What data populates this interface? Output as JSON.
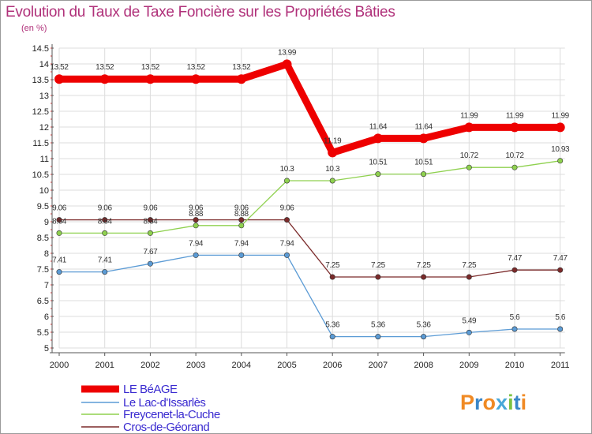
{
  "chart_data": {
    "type": "line",
    "title": "Evolution du Taux de Taxe Foncière sur les Propriétés Bâties",
    "subtitle": "(en %)",
    "x": [
      "2000",
      "2001",
      "2002",
      "2003",
      "2004",
      "2005",
      "2006",
      "2007",
      "2008",
      "2009",
      "2010",
      "2011"
    ],
    "ylim": [
      5,
      14.5
    ],
    "yticks": [
      "5",
      "5.5",
      "6",
      "6.5",
      "7",
      "7.5",
      "8",
      "8.5",
      "9",
      "9.5",
      "10",
      "10.5",
      "11",
      "11.5",
      "12",
      "12.5",
      "13",
      "13.5",
      "14",
      "14.5"
    ],
    "series": [
      {
        "name": "LE BéAGE",
        "color": "#ee0000",
        "values": [
          13.52,
          13.52,
          13.52,
          13.52,
          13.52,
          13.99,
          11.19,
          11.64,
          11.64,
          11.99,
          11.99,
          11.99
        ],
        "labels": [
          "13.52",
          "13.52",
          "13.52",
          "13.52",
          "13.52",
          "13.99",
          "11.19",
          "11.64",
          "11.64",
          "11.99",
          "11.99",
          "11.99"
        ]
      },
      {
        "name": "Le Lac-d'Issarlès",
        "color": "#5b9bd5",
        "values": [
          7.41,
          7.41,
          7.67,
          7.94,
          7.94,
          7.94,
          5.36,
          5.36,
          5.36,
          5.49,
          5.6,
          5.6
        ],
        "labels": [
          "7.41",
          "7.41",
          "7.67",
          "7.94",
          "7.94",
          "7.94",
          "5.36",
          "5.36",
          "5.36",
          "5.49",
          "5.6",
          "5.6"
        ]
      },
      {
        "name": "Freycenet-la-Cuche",
        "color": "#8fd14f",
        "values": [
          8.64,
          8.64,
          8.64,
          8.88,
          8.88,
          10.3,
          10.3,
          10.51,
          10.51,
          10.72,
          10.72,
          10.93
        ],
        "labels": [
          "8.64",
          "8.64",
          "8.64",
          "8.88",
          "8.88",
          "10.3",
          "10.3",
          "10.51",
          "10.51",
          "10.72",
          "10.72",
          "10.93"
        ]
      },
      {
        "name": "Cros-de-Géorand",
        "color": "#7b2a2a",
        "values": [
          9.06,
          9.06,
          9.06,
          9.06,
          9.06,
          9.06,
          7.25,
          7.25,
          7.25,
          7.25,
          7.47,
          7.47
        ],
        "labels": [
          "9.06",
          "9.06",
          "9.06",
          "9.06",
          "9.06",
          "9.06",
          "7.25",
          "7.25",
          "7.25",
          "7.25",
          "7.47",
          "7.47"
        ]
      }
    ],
    "legend_position": "bottom-left"
  },
  "logo": {
    "text": "Proxiti"
  }
}
